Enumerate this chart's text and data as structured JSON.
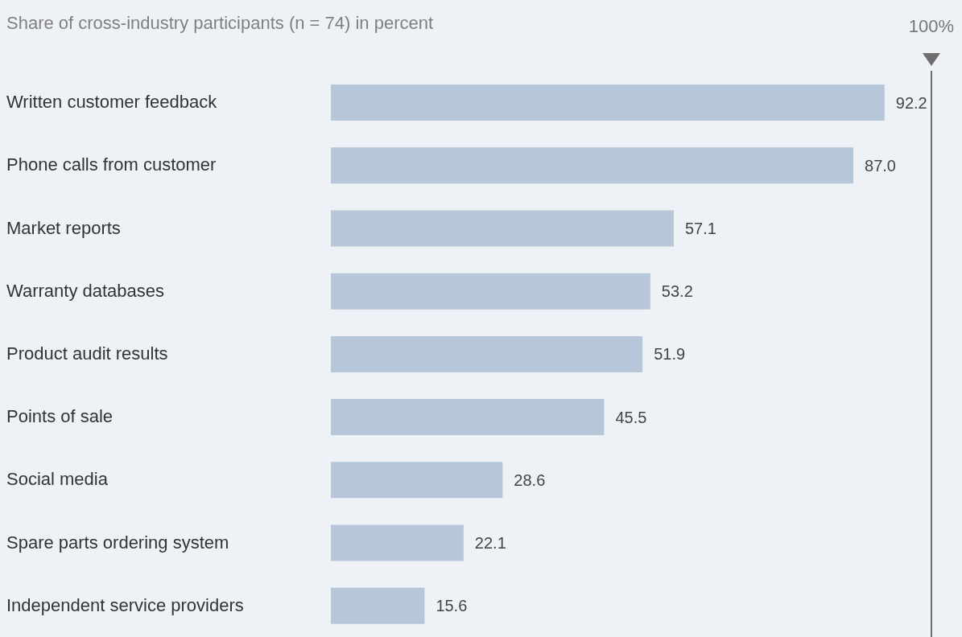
{
  "chart_data": {
    "type": "bar",
    "orientation": "horizontal",
    "subtitle": "Share of cross-industry participants (n = 74) in percent",
    "categories": [
      "Written customer feedback",
      "Phone calls from customer",
      "Market reports",
      "Warranty databases",
      "Product audit results",
      "Points of sale",
      "Social media",
      "Spare parts ordering system",
      "Independent service providers"
    ],
    "values": [
      92.2,
      87.0,
      57.1,
      53.2,
      51.9,
      45.5,
      28.6,
      22.1,
      15.6
    ],
    "value_labels": [
      "92.2",
      "87.0",
      "57.1",
      "53.2",
      "51.9",
      "45.5",
      "28.6",
      "22.1",
      "15.6"
    ],
    "color": "#b6c7da",
    "xlim": [
      0,
      100
    ],
    "tick_labels": "y",
    "grid": false,
    "legend": false,
    "ref_lines": [
      {
        "axis": "x",
        "value": 100,
        "label": "100%",
        "color": "#6e6e6e"
      }
    ]
  }
}
